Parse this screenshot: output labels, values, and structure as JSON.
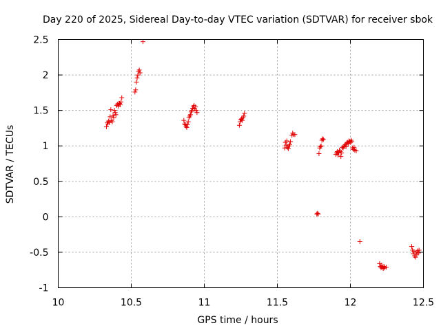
{
  "chart_data": {
    "type": "scatter",
    "title": "Day 220 of 2025, Sidereal Day-to-day VTEC variation (SDTVAR) for receiver sbok",
    "xlabel": "GPS time / hours",
    "ylabel": "SDTVAR / TECUs",
    "xlim": [
      10,
      12.5
    ],
    "ylim": [
      -1,
      2.5
    ],
    "grid": true,
    "marker": "plus",
    "marker_color": "#e00000",
    "x_ticks": [
      10,
      10.5,
      11,
      11.5,
      12,
      12.5
    ],
    "x_tick_labels": [
      "10",
      "10.5",
      "11",
      "11.5",
      "12",
      "12.5"
    ],
    "y_ticks": [
      -1,
      -0.5,
      0,
      0.5,
      1,
      1.5,
      2,
      2.5
    ],
    "y_tick_labels": [
      "-1",
      "-0.5",
      "0",
      "0.5",
      "1",
      "1.5",
      "2",
      "2.5"
    ],
    "series": [
      {
        "name": "SDTVAR",
        "points": [
          [
            10.33,
            1.27
          ],
          [
            10.335,
            1.33
          ],
          [
            10.34,
            1.31
          ],
          [
            10.345,
            1.35
          ],
          [
            10.35,
            1.33
          ],
          [
            10.355,
            1.41
          ],
          [
            10.36,
            1.51
          ],
          [
            10.365,
            1.36
          ],
          [
            10.37,
            1.34
          ],
          [
            10.375,
            1.43
          ],
          [
            10.38,
            1.4
          ],
          [
            10.385,
            1.5
          ],
          [
            10.39,
            1.47
          ],
          [
            10.395,
            1.44
          ],
          [
            10.4,
            1.57
          ],
          [
            10.405,
            1.59
          ],
          [
            10.41,
            1.56
          ],
          [
            10.415,
            1.6
          ],
          [
            10.42,
            1.6
          ],
          [
            10.425,
            1.58
          ],
          [
            10.43,
            1.62
          ],
          [
            10.435,
            1.68
          ],
          [
            10.525,
            1.76
          ],
          [
            10.53,
            1.79
          ],
          [
            10.535,
            1.9
          ],
          [
            10.54,
            1.96
          ],
          [
            10.545,
            2.0
          ],
          [
            10.55,
            2.05
          ],
          [
            10.555,
            2.07
          ],
          [
            10.56,
            2.03
          ],
          [
            10.58,
            2.47
          ],
          [
            10.86,
            1.36
          ],
          [
            10.865,
            1.31
          ],
          [
            10.87,
            1.3
          ],
          [
            10.875,
            1.28
          ],
          [
            10.88,
            1.26
          ],
          [
            10.885,
            1.3
          ],
          [
            10.89,
            1.34
          ],
          [
            10.895,
            1.4
          ],
          [
            10.9,
            1.42
          ],
          [
            10.905,
            1.44
          ],
          [
            10.91,
            1.48
          ],
          [
            10.915,
            1.5
          ],
          [
            10.92,
            1.53
          ],
          [
            10.925,
            1.55
          ],
          [
            10.93,
            1.57
          ],
          [
            10.935,
            1.52
          ],
          [
            10.94,
            1.55
          ],
          [
            10.945,
            1.5
          ],
          [
            10.95,
            1.47
          ],
          [
            11.24,
            1.29
          ],
          [
            11.245,
            1.34
          ],
          [
            11.25,
            1.37
          ],
          [
            11.255,
            1.38
          ],
          [
            11.26,
            1.36
          ],
          [
            11.265,
            1.4
          ],
          [
            11.27,
            1.42
          ],
          [
            11.275,
            1.46
          ],
          [
            11.55,
            0.97
          ],
          [
            11.555,
            1.05
          ],
          [
            11.56,
            1.01
          ],
          [
            11.565,
            1.07
          ],
          [
            11.57,
            0.98
          ],
          [
            11.575,
            0.96
          ],
          [
            11.58,
            1.0
          ],
          [
            11.585,
            1.02
          ],
          [
            11.59,
            1.06
          ],
          [
            11.6,
            1.15
          ],
          [
            11.605,
            1.18
          ],
          [
            11.61,
            1.16
          ],
          [
            11.62,
            1.16
          ],
          [
            11.77,
            0.04
          ],
          [
            11.775,
            0.05
          ],
          [
            11.78,
            0.04
          ],
          [
            11.785,
            0.89
          ],
          [
            11.79,
            0.97
          ],
          [
            11.795,
            0.99
          ],
          [
            11.8,
            1.0
          ],
          [
            11.805,
            1.08
          ],
          [
            11.81,
            1.1
          ],
          [
            11.815,
            1.09
          ],
          [
            11.9,
            0.88
          ],
          [
            11.905,
            0.9
          ],
          [
            11.91,
            0.92
          ],
          [
            11.915,
            0.87
          ],
          [
            11.92,
            0.91
          ],
          [
            11.925,
            0.94
          ],
          [
            11.93,
            0.92
          ],
          [
            11.935,
            0.85
          ],
          [
            11.94,
            0.9
          ],
          [
            11.945,
            0.98
          ],
          [
            11.95,
            0.97
          ],
          [
            11.955,
            0.99
          ],
          [
            11.96,
            1.0
          ],
          [
            11.965,
            1.02
          ],
          [
            11.97,
            0.99
          ],
          [
            11.975,
            1.04
          ],
          [
            11.98,
            1.05
          ],
          [
            11.985,
            1.03
          ],
          [
            11.99,
            1.07
          ],
          [
            11.995,
            1.06
          ],
          [
            12.0,
            1.05
          ],
          [
            12.005,
            1.08
          ],
          [
            12.01,
            1.06
          ],
          [
            12.015,
            0.97
          ],
          [
            12.02,
            0.95
          ],
          [
            12.025,
            0.98
          ],
          [
            12.03,
            0.94
          ],
          [
            12.04,
            0.93
          ],
          [
            12.065,
            -0.35
          ],
          [
            12.2,
            -0.66
          ],
          [
            12.205,
            -0.7
          ],
          [
            12.21,
            -0.72
          ],
          [
            12.215,
            -0.68
          ],
          [
            12.22,
            -0.71
          ],
          [
            12.225,
            -0.73
          ],
          [
            12.23,
            -0.7
          ],
          [
            12.235,
            -0.72
          ],
          [
            12.245,
            -0.71
          ],
          [
            12.42,
            -0.42
          ],
          [
            12.425,
            -0.47
          ],
          [
            12.43,
            -0.52
          ],
          [
            12.435,
            -0.49
          ],
          [
            12.44,
            -0.55
          ],
          [
            12.445,
            -0.57
          ],
          [
            12.45,
            -0.5
          ],
          [
            12.455,
            -0.53
          ],
          [
            12.46,
            -0.48
          ],
          [
            12.465,
            -0.51
          ],
          [
            12.47,
            -0.47
          ]
        ]
      }
    ]
  }
}
